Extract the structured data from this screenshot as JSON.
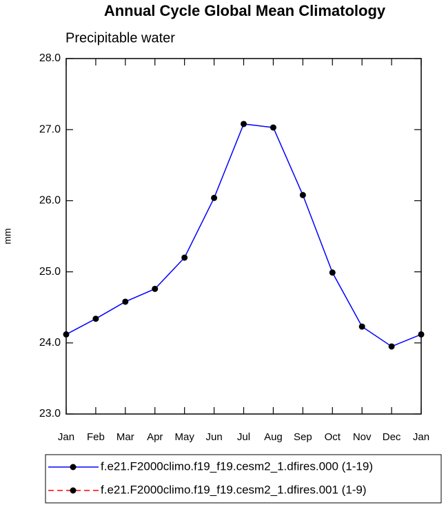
{
  "chart_data": {
    "type": "line",
    "title": "Annual Cycle Global Mean Climatology",
    "subtitle": "Precipitable water",
    "y_label": "mm",
    "categories": [
      "Jan",
      "Feb",
      "Mar",
      "Apr",
      "May",
      "Jun",
      "Jul",
      "Aug",
      "Sep",
      "Oct",
      "Nov",
      "Dec",
      "Jan"
    ],
    "series": [
      {
        "name": "f.e21.F2000climo.f19_f19.cesm2_1.dfires.000 (1-19)",
        "color": "#0000ff",
        "style": "solid",
        "marker_color": "#000000",
        "values": [
          24.12,
          24.34,
          24.58,
          24.76,
          25.2,
          26.04,
          27.08,
          27.03,
          26.08,
          24.99,
          24.23,
          23.95,
          24.12
        ]
      },
      {
        "name": "f.e21.F2000climo.f19_f19.cesm2_1.dfires.001 (1-9)",
        "color": "#ff0000",
        "style": "dashed",
        "marker_color": "#000000",
        "values": [
          null,
          null,
          null,
          null,
          null,
          null,
          null,
          null,
          null,
          null,
          null,
          null,
          null
        ]
      }
    ],
    "ylim": [
      23,
      28
    ],
    "yticks": [
      {
        "value": 23,
        "label": "23.0"
      },
      {
        "value": 24,
        "label": "24.0"
      },
      {
        "value": 25,
        "label": "25.0"
      },
      {
        "value": 26,
        "label": "26.0"
      },
      {
        "value": 27,
        "label": "27.0"
      },
      {
        "value": 28,
        "label": "28.0"
      }
    ]
  }
}
